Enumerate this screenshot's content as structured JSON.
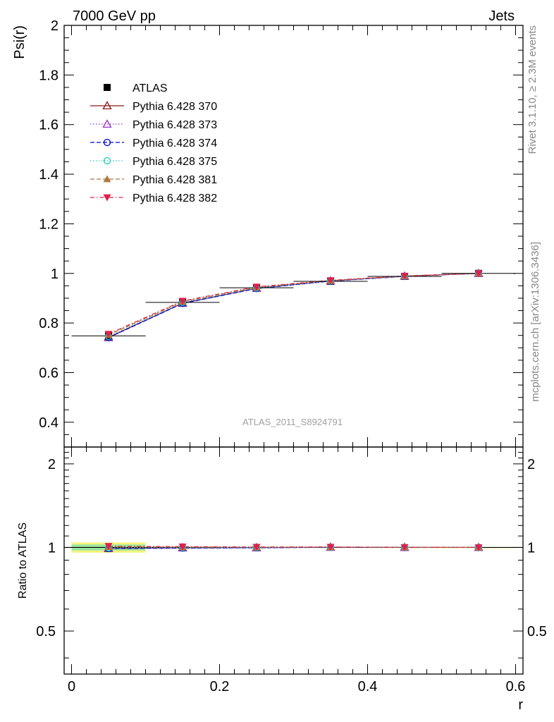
{
  "header": {
    "left_title": "7000 GeV pp",
    "right_title": "Jets"
  },
  "side_labels": {
    "rivet": "Rivet 3.1.10, ≥ 2.3M events",
    "mcplots": "mcplots.cern.ch [arXiv:1306.3436]"
  },
  "watermark": "ATLAS_2011_S8924791",
  "colors": {
    "ATLAS": "#000000",
    "Pythia 6.428 370": "#8b1a1a",
    "Pythia 6.428 373": "#9932cc",
    "Pythia 6.428 374": "#0000e0",
    "Pythia 6.428 375": "#20c8b0",
    "Pythia 6.428 381": "#b07840",
    "Pythia 6.428 382": "#e0204c",
    "band_yellow": "#f4f47a",
    "band_green": "#9ee6a0"
  },
  "chart_data": [
    {
      "type": "line",
      "panel": "main",
      "xlabel": "r",
      "ylabel": "Psi(r)",
      "xlim": [
        -0.01,
        0.61
      ],
      "ylim": [
        0.3,
        2.0
      ],
      "y_ticks": [
        0.4,
        0.6,
        0.8,
        1,
        1.2,
        1.4,
        1.6,
        1.8,
        2
      ],
      "y_tick_labels": [
        "0.4",
        "0.6",
        "0.8",
        "1",
        "1.2",
        "1.4",
        "1.6",
        "1.8",
        "2"
      ],
      "x": [
        0.05,
        0.15,
        0.25,
        0.35,
        0.45,
        0.55
      ],
      "x_bins": [
        [
          0.0,
          0.1
        ],
        [
          0.1,
          0.2
        ],
        [
          0.2,
          0.3
        ],
        [
          0.3,
          0.4
        ],
        [
          0.4,
          0.5
        ],
        [
          0.5,
          0.6
        ]
      ],
      "legend_position": "top-left",
      "series": [
        {
          "name": "ATLAS",
          "marker": "square",
          "line": "none",
          "values": [
            0.748,
            0.883,
            0.942,
            0.968,
            0.988,
            1.0
          ]
        },
        {
          "name": "Pythia 6.428 370",
          "marker": "triangle-open",
          "line": "solid",
          "values": [
            0.742,
            0.88,
            0.94,
            0.97,
            0.989,
            1.0
          ]
        },
        {
          "name": "Pythia 6.428 373",
          "marker": "triangle-open",
          "line": "dotted",
          "values": [
            0.745,
            0.882,
            0.941,
            0.97,
            0.989,
            1.0
          ]
        },
        {
          "name": "Pythia 6.428 374",
          "marker": "circle-open",
          "line": "dashed",
          "values": [
            0.741,
            0.879,
            0.939,
            0.969,
            0.988,
            1.0
          ]
        },
        {
          "name": "Pythia 6.428 375",
          "marker": "circle-open",
          "line": "dotted",
          "values": [
            0.746,
            0.883,
            0.941,
            0.97,
            0.989,
            1.0
          ]
        },
        {
          "name": "Pythia 6.428 381",
          "marker": "triangle-filled",
          "line": "dashed",
          "values": [
            0.752,
            0.886,
            0.944,
            0.971,
            0.989,
            1.0
          ]
        },
        {
          "name": "Pythia 6.428 382",
          "marker": "triangle-down-filled",
          "line": "dashdot",
          "values": [
            0.756,
            0.889,
            0.946,
            0.972,
            0.99,
            1.0
          ]
        }
      ]
    },
    {
      "type": "line",
      "panel": "ratio",
      "xlabel": "r",
      "ylabel": "Ratio to ATLAS",
      "xlim": [
        -0.01,
        0.61
      ],
      "ylim": [
        0.35,
        2.3
      ],
      "y_scale": "log",
      "x_ticks": [
        0,
        0.2,
        0.4,
        0.6
      ],
      "x_tick_labels": [
        "0",
        "0.2",
        "0.4",
        "0.6"
      ],
      "y_ticks": [
        0.5,
        1,
        2
      ],
      "y_tick_labels": [
        "0.5",
        "1",
        "2"
      ],
      "x": [
        0.05,
        0.15,
        0.25,
        0.35,
        0.45,
        0.55
      ],
      "band": {
        "outer_low": [
          0.958,
          0.992,
          0.996,
          0.998,
          0.999,
          1.0
        ],
        "outer_high": [
          1.042,
          1.008,
          1.004,
          1.002,
          1.001,
          1.0
        ],
        "inner_low": [
          0.975,
          0.995,
          0.998,
          0.999,
          0.9995,
          1.0
        ],
        "inner_high": [
          1.025,
          1.005,
          1.002,
          1.001,
          1.0005,
          1.0
        ]
      },
      "series": [
        {
          "name": "Pythia 6.428 370",
          "values": [
            0.992,
            0.997,
            0.998,
            1.002,
            1.001,
            1.0
          ]
        },
        {
          "name": "Pythia 6.428 373",
          "values": [
            0.996,
            0.999,
            0.999,
            1.002,
            1.001,
            1.0
          ]
        },
        {
          "name": "Pythia 6.428 374",
          "values": [
            0.991,
            0.995,
            0.997,
            1.001,
            1.0,
            1.0
          ]
        },
        {
          "name": "Pythia 6.428 375",
          "values": [
            0.997,
            1.0,
            0.999,
            1.002,
            1.001,
            1.0
          ]
        },
        {
          "name": "Pythia 6.428 381",
          "values": [
            1.005,
            1.003,
            1.002,
            1.003,
            1.001,
            1.0
          ]
        },
        {
          "name": "Pythia 6.428 382",
          "values": [
            1.011,
            1.007,
            1.004,
            1.004,
            1.002,
            1.0
          ]
        }
      ]
    }
  ]
}
